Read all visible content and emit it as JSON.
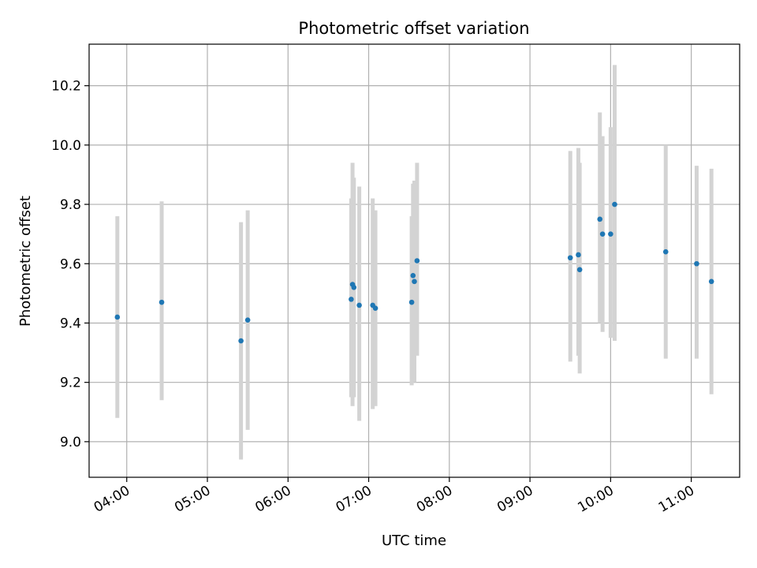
{
  "chart_data": {
    "type": "scatter",
    "title": "Photometric offset variation",
    "xlabel": "UTC time",
    "ylabel": "Photometric offset",
    "x_ticks": [
      "04:00",
      "05:00",
      "06:00",
      "07:00",
      "08:00",
      "09:00",
      "10:00",
      "11:00"
    ],
    "y_ticks": [
      "9.0",
      "9.2",
      "9.4",
      "9.6",
      "9.8",
      "10.0",
      "10.2"
    ],
    "xlim": [
      "03:32",
      "11:36"
    ],
    "ylim": [
      8.88,
      10.34
    ],
    "grid": true,
    "point_color": "#1f77b4",
    "errorbar_color": "#d3d3d3",
    "points": [
      {
        "x": "03:53",
        "y": 9.42,
        "ylow": 9.08,
        "yhigh": 9.76
      },
      {
        "x": "04:26",
        "y": 9.47,
        "ylow": 9.14,
        "yhigh": 9.81
      },
      {
        "x": "05:25",
        "y": 9.34,
        "ylow": 8.94,
        "yhigh": 9.74
      },
      {
        "x": "05:30",
        "y": 9.41,
        "ylow": 9.04,
        "yhigh": 9.78
      },
      {
        "x": "06:47",
        "y": 9.48,
        "ylow": 9.15,
        "yhigh": 9.82
      },
      {
        "x": "06:48",
        "y": 9.53,
        "ylow": 9.12,
        "yhigh": 9.94
      },
      {
        "x": "06:49",
        "y": 9.52,
        "ylow": 9.15,
        "yhigh": 9.89
      },
      {
        "x": "06:53",
        "y": 9.46,
        "ylow": 9.07,
        "yhigh": 9.86
      },
      {
        "x": "07:03",
        "y": 9.46,
        "ylow": 9.11,
        "yhigh": 9.82
      },
      {
        "x": "07:05",
        "y": 9.45,
        "ylow": 9.12,
        "yhigh": 9.78
      },
      {
        "x": "07:32",
        "y": 9.47,
        "ylow": 9.19,
        "yhigh": 9.76
      },
      {
        "x": "07:33",
        "y": 9.56,
        "ylow": 9.23,
        "yhigh": 9.87
      },
      {
        "x": "07:34",
        "y": 9.54,
        "ylow": 9.2,
        "yhigh": 9.88
      },
      {
        "x": "07:36",
        "y": 9.61,
        "ylow": 9.29,
        "yhigh": 9.94
      },
      {
        "x": "09:30",
        "y": 9.62,
        "ylow": 9.27,
        "yhigh": 9.98
      },
      {
        "x": "09:36",
        "y": 9.63,
        "ylow": 9.29,
        "yhigh": 9.99
      },
      {
        "x": "09:37",
        "y": 9.58,
        "ylow": 9.23,
        "yhigh": 9.94
      },
      {
        "x": "09:52",
        "y": 9.75,
        "ylow": 9.4,
        "yhigh": 10.11
      },
      {
        "x": "09:54",
        "y": 9.7,
        "ylow": 9.37,
        "yhigh": 10.03
      },
      {
        "x": "10:00",
        "y": 9.7,
        "ylow": 9.35,
        "yhigh": 10.06
      },
      {
        "x": "10:03",
        "y": 9.8,
        "ylow": 9.34,
        "yhigh": 10.27
      },
      {
        "x": "10:41",
        "y": 9.64,
        "ylow": 9.28,
        "yhigh": 10.0
      },
      {
        "x": "11:04",
        "y": 9.6,
        "ylow": 9.28,
        "yhigh": 9.93
      },
      {
        "x": "11:15",
        "y": 9.54,
        "ylow": 9.16,
        "yhigh": 9.92
      }
    ]
  }
}
